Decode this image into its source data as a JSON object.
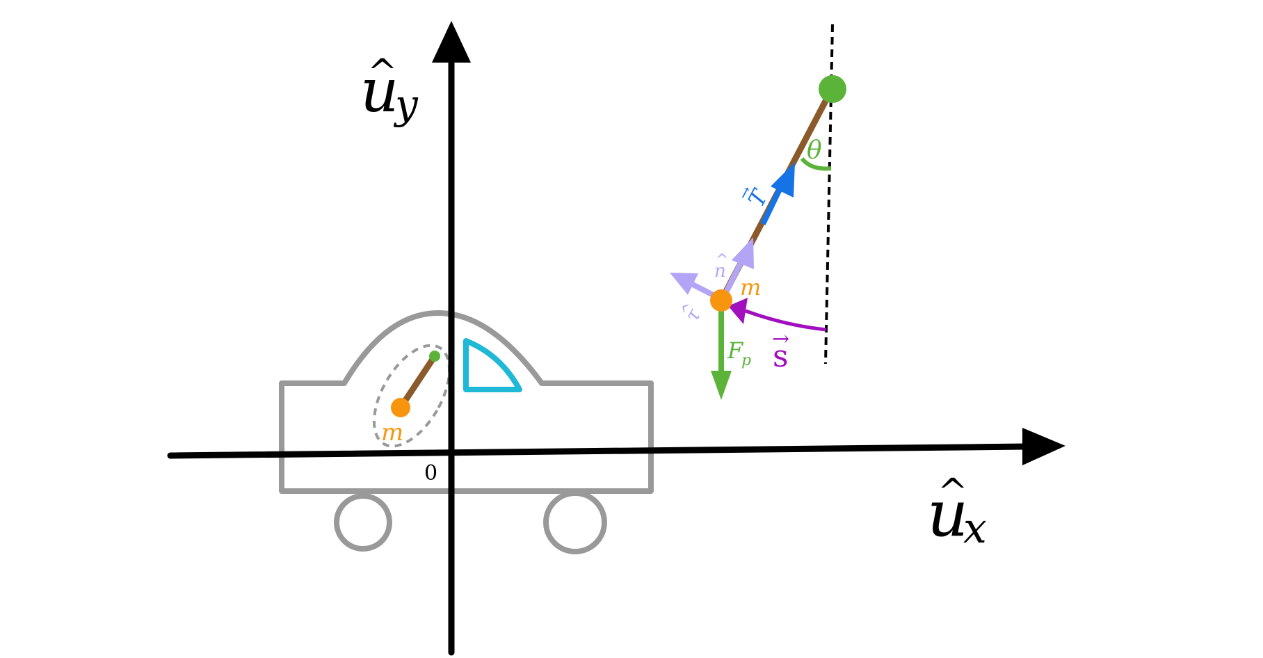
{
  "axes": {
    "x_label": "u",
    "x_subscript": "x",
    "y_label": "u",
    "y_subscript": "y",
    "hat": "^",
    "origin_label": "0"
  },
  "car": {
    "mass_label": "m"
  },
  "pendulum": {
    "mass_label": "m",
    "angle_label": "θ",
    "tension_label": "T",
    "normal_label": "n",
    "tangent_label": "τ",
    "weight_label": "F",
    "weight_subscript": "p",
    "arc_label": "s",
    "vector_arrow": "→",
    "hat": "^"
  },
  "colors": {
    "axis": "#000000",
    "car": "#999999",
    "window": "#1fb8d6",
    "rod": "#8b5a2b",
    "mass": "#f7950e",
    "pivot": "#5cb33a",
    "tension": "#1673e6",
    "unit_vectors": "#b3a4f5",
    "arc": "#a10fbf",
    "weight": "#5cb33a",
    "vertical_ref": "#000000"
  }
}
